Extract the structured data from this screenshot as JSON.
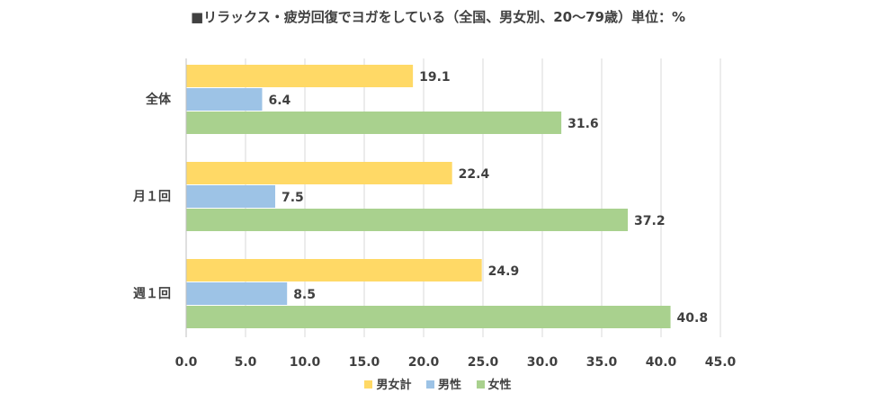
{
  "chart_data": {
    "type": "bar",
    "orientation": "horizontal",
    "title": "■リラックス・疲労回復でヨガをしている（全国、男女別、20～79歳）単位：%",
    "categories": [
      "全体",
      "月１回",
      "週１回"
    ],
    "series": [
      {
        "name": "男女計",
        "color": "#FFD966",
        "values": [
          19.1,
          22.4,
          24.9
        ]
      },
      {
        "name": "男性",
        "color": "#9DC3E6",
        "values": [
          6.4,
          7.5,
          8.5
        ]
      },
      {
        "name": "女性",
        "color": "#A9D18E",
        "values": [
          31.6,
          37.2,
          40.8
        ]
      }
    ],
    "xlim": [
      0,
      45
    ],
    "xticks": [
      "0.0",
      "5.0",
      "10.0",
      "15.0",
      "20.0",
      "25.0",
      "30.0",
      "35.0",
      "40.0",
      "45.0"
    ],
    "grid": true,
    "legend_position": "bottom"
  }
}
